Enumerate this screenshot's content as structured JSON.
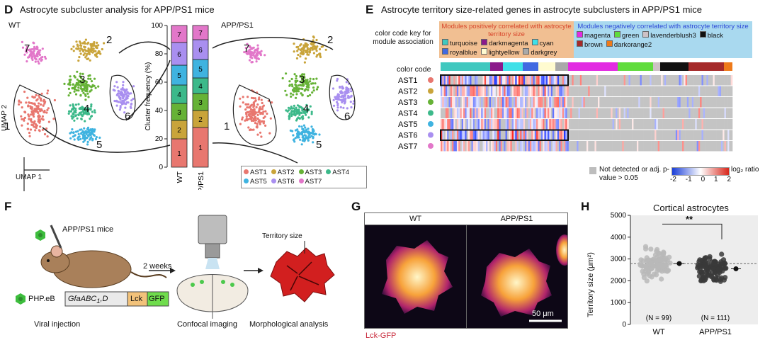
{
  "panels": {
    "D": {
      "label": "D",
      "title": "Astrocyte subcluster analysis for APP/PS1 mice",
      "wt_label": "WT",
      "app_label": "APP/PS1",
      "umap_x": "UMAP 1",
      "umap_y": "UMAP 2",
      "cluster_numbers": [
        "1",
        "2",
        "3",
        "4",
        "5",
        "6",
        "7"
      ],
      "legend": [
        "AST1",
        "AST2",
        "AST3",
        "AST4",
        "AST5",
        "AST6",
        "AST7"
      ],
      "colors": {
        "AST1": "#e8776f",
        "AST2": "#c9a43a",
        "AST3": "#66b236",
        "AST4": "#3cb98a",
        "AST5": "#3fb3e0",
        "AST6": "#a98ff0",
        "AST7": "#e277c9"
      }
    },
    "E": {
      "label": "E",
      "title": "Astrocyte territory size-related genes in astrocyte subclusters in APP/PS1 mice",
      "key_label": "color code key for module association",
      "pos_header": "Modules positively correlated with astrocyte territory size",
      "neg_header": "Modules negatively correlated with astrocyte territory size",
      "pos_modules": [
        "turquoise",
        "darkmagenta",
        "cyan",
        "royalblue",
        "lightyellow",
        "darkgrey"
      ],
      "neg_modules": [
        "magenta",
        "green",
        "lavenderblush3",
        "black",
        "brown",
        "darkorange2"
      ],
      "color_code_label": "color code",
      "rows": [
        "AST1",
        "AST2",
        "AST3",
        "AST4",
        "AST5",
        "AST6",
        "AST7"
      ],
      "nd_label": "Not detected or adj. p-value > 0.05",
      "scale_label": "log₂ ratio",
      "scale_ticks": [
        "-2",
        "-1",
        "0",
        "1",
        "2"
      ]
    },
    "F": {
      "label": "F",
      "mice": "APP/PS1 mice",
      "vector": "PHP.eB",
      "promoter": "GfaABC",
      "promoter_sub": "1",
      "promoter_suffix": "D",
      "lck": "Lck",
      "gfp": "GFP",
      "weeks": "2 weeks",
      "step1": "Viral injection",
      "step2": "Confocal imaging",
      "step3": "Morphological analysis",
      "territory": "Territory size"
    },
    "G": {
      "label": "G",
      "wt": "WT",
      "app": "APP/PS1",
      "scale": "50 μm",
      "caption": "Lck-GFP"
    },
    "H": {
      "label": "H",
      "title": "Cortical astrocytes",
      "ylabel": "Territory size (μm²)",
      "sig": "**"
    }
  },
  "chart_data": [
    {
      "type": "bar",
      "stacked": true,
      "categories": [
        "WT",
        "APP/PS1"
      ],
      "ylabel": "Cluster frequency (%)",
      "ylim": [
        0,
        100
      ],
      "yticks": [
        0,
        20,
        40,
        60,
        80,
        100
      ],
      "series": [
        {
          "name": "1",
          "values": [
            20,
            28
          ]
        },
        {
          "name": "2",
          "values": [
            13,
            12
          ]
        },
        {
          "name": "3",
          "values": [
            12,
            12
          ]
        },
        {
          "name": "4",
          "values": [
            13,
            11
          ]
        },
        {
          "name": "5",
          "values": [
            14,
            13
          ]
        },
        {
          "name": "6",
          "values": [
            16,
            14
          ]
        },
        {
          "name": "7",
          "values": [
            12,
            10
          ]
        }
      ]
    },
    {
      "type": "scatter",
      "title": "Cortical astrocytes",
      "categories": [
        "WT",
        "APP/PS1"
      ],
      "ylabel": "Territory size (μm²)",
      "ylim": [
        0,
        5000
      ],
      "yticks": [
        0,
        1000,
        2000,
        3000,
        4000,
        5000
      ],
      "n_labels": [
        "(N = 99)",
        "(N = 111)"
      ],
      "counts": [
        99,
        111
      ],
      "means": [
        2790,
        2550
      ],
      "sem": [
        60,
        55
      ],
      "ranges": [
        [
          1500,
          4650
        ],
        [
          1100,
          3750
        ]
      ],
      "reference_line": 2790,
      "significance": "**"
    }
  ]
}
